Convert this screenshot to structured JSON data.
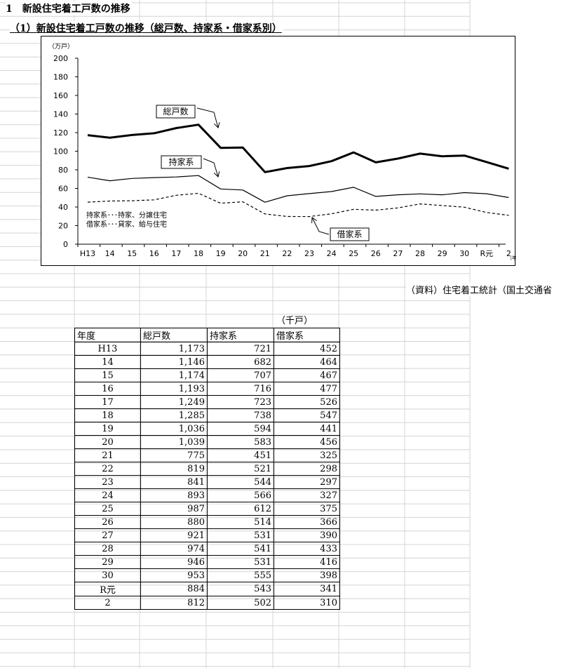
{
  "heading": "1　新設住宅着工戸数の推移",
  "subheading": "（1）新設住宅着工戸数の推移（総戸数、持家系・借家系別）",
  "source_note": "（資料）住宅着工統計（国土交通省",
  "table_unit": "（千戸）",
  "table": {
    "headers": [
      "年度",
      "総戸数",
      "持家系",
      "借家系"
    ],
    "rows": [
      [
        "H13",
        "1,173",
        "721",
        "452"
      ],
      [
        "14",
        "1,146",
        "682",
        "464"
      ],
      [
        "15",
        "1,174",
        "707",
        "467"
      ],
      [
        "16",
        "1,193",
        "716",
        "477"
      ],
      [
        "17",
        "1,249",
        "723",
        "526"
      ],
      [
        "18",
        "1,285",
        "738",
        "547"
      ],
      [
        "19",
        "1,036",
        "594",
        "441"
      ],
      [
        "20",
        "1,039",
        "583",
        "456"
      ],
      [
        "21",
        "775",
        "451",
        "325"
      ],
      [
        "22",
        "819",
        "521",
        "298"
      ],
      [
        "23",
        "841",
        "544",
        "297"
      ],
      [
        "24",
        "893",
        "566",
        "327"
      ],
      [
        "25",
        "987",
        "612",
        "375"
      ],
      [
        "26",
        "880",
        "514",
        "366"
      ],
      [
        "27",
        "921",
        "531",
        "390"
      ],
      [
        "28",
        "974",
        "541",
        "433"
      ],
      [
        "29",
        "946",
        "531",
        "416"
      ],
      [
        "30",
        "953",
        "555",
        "398"
      ],
      [
        "R元",
        "884",
        "543",
        "341"
      ],
      [
        "2",
        "812",
        "502",
        "310"
      ]
    ]
  },
  "chart_data": {
    "type": "line",
    "ylabel": "（万戸）",
    "xlabel": "（年度）",
    "ylim": [
      0,
      200
    ],
    "yticks": [
      0,
      20,
      40,
      60,
      80,
      100,
      120,
      140,
      160,
      180,
      200
    ],
    "grid": false,
    "categories": [
      "H13",
      "14",
      "15",
      "16",
      "17",
      "18",
      "19",
      "20",
      "21",
      "22",
      "23",
      "24",
      "25",
      "26",
      "27",
      "28",
      "29",
      "30",
      "R元",
      "2"
    ],
    "series": [
      {
        "name": "総戸数",
        "values": [
          117.3,
          114.6,
          117.4,
          119.3,
          124.9,
          128.5,
          103.6,
          103.9,
          77.5,
          81.9,
          84.1,
          89.3,
          98.7,
          88.0,
          92.1,
          97.4,
          94.6,
          95.3,
          88.4,
          81.2
        ],
        "style": "thick",
        "color": "#000000"
      },
      {
        "name": "持家系",
        "values": [
          72.1,
          68.2,
          70.7,
          71.6,
          72.3,
          73.8,
          59.4,
          58.3,
          45.1,
          52.1,
          54.4,
          56.6,
          61.2,
          51.4,
          53.1,
          54.1,
          53.1,
          55.5,
          54.3,
          50.2
        ],
        "style": "thin",
        "color": "#000000"
      },
      {
        "name": "借家系",
        "values": [
          45.2,
          46.4,
          46.7,
          47.7,
          52.6,
          54.7,
          44.1,
          45.6,
          32.5,
          29.8,
          29.7,
          32.7,
          37.5,
          36.6,
          39.0,
          43.3,
          41.6,
          39.8,
          34.1,
          31.0
        ],
        "style": "dashed",
        "color": "#000000"
      }
    ],
    "annotations": [
      "持家系･･･持家、分譲住宅",
      "借家系･･･貸家、給与住宅"
    ]
  }
}
